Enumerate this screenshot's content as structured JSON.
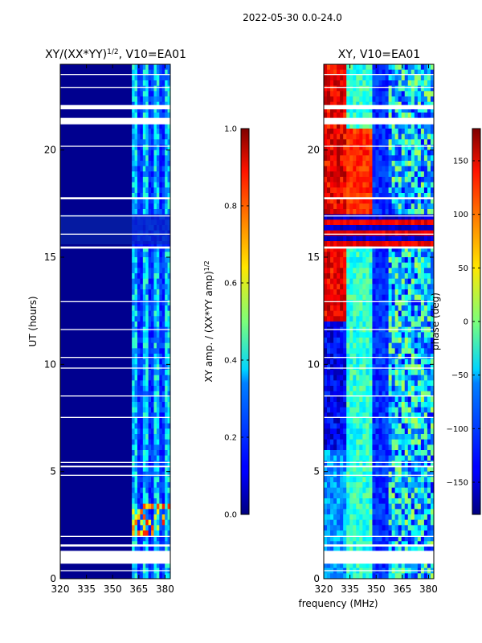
{
  "figure": {
    "suptitle": "2022-05-30 0.0-24.0",
    "xlabel": "frequency (MHz)"
  },
  "chart_data": [
    {
      "type": "heatmap",
      "title_main": "XY/(XX*YY)",
      "title_sup": "1/2",
      "title_rest": ", V10=EA01",
      "xlabel": "",
      "ylabel": "UT (hours)",
      "xlim": [
        320,
        383
      ],
      "ylim": [
        0,
        24
      ],
      "xticks": [
        320,
        335,
        350,
        365,
        380
      ],
      "yticks": [
        0,
        5,
        10,
        15,
        20
      ],
      "colormap": "jet",
      "colorbar": {
        "label_main": "XY amp. / (XX*YY amp)",
        "label_sup": "1/2",
        "range": [
          0.0,
          1.0
        ],
        "ticks": [
          "0.0",
          "0.2",
          "0.4",
          "0.6",
          "0.8",
          "1.0"
        ],
        "tick_values": [
          0.0,
          0.2,
          0.4,
          0.6,
          0.8,
          1.0
        ]
      },
      "mask_start_mhz": 330
    },
    {
      "type": "heatmap",
      "title_main": "XY, V10=EA01",
      "title_sup": "",
      "title_rest": "",
      "xlabel": "",
      "ylabel": "",
      "xlim": [
        320,
        383
      ],
      "ylim": [
        0,
        24
      ],
      "xticks": [
        320,
        335,
        350,
        365,
        380
      ],
      "yticks": [
        0,
        5,
        10,
        15,
        20
      ],
      "colormap": "jet",
      "colorbar": {
        "label_main": "phase (deg)",
        "label_sup": "",
        "range": [
          -180,
          180
        ],
        "ticks": [
          "−150",
          "−100",
          "−50",
          "0",
          "50",
          "100",
          "150"
        ],
        "tick_values": [
          -150,
          -100,
          -50,
          0,
          50,
          100,
          150
        ]
      },
      "mask_start_mhz": 320
    }
  ],
  "flagged_ut_ranges": [
    [
      0.35,
      0.4
    ],
    [
      0.7,
      1.3
    ],
    [
      1.5,
      1.6
    ],
    [
      1.95,
      2.0
    ],
    [
      4.8,
      4.85
    ],
    [
      5.2,
      5.27
    ],
    [
      5.4,
      5.45
    ],
    [
      7.5,
      7.55
    ],
    [
      8.5,
      8.55
    ],
    [
      9.8,
      9.85
    ],
    [
      10.3,
      10.35
    ],
    [
      11.6,
      11.65
    ],
    [
      12.9,
      12.95
    ],
    [
      15.4,
      15.5
    ],
    [
      16.05,
      16.1
    ],
    [
      16.9,
      16.95
    ],
    [
      17.7,
      17.8
    ],
    [
      20.15,
      20.2
    ],
    [
      21.2,
      21.5
    ],
    [
      21.9,
      22.1
    ],
    [
      22.9,
      22.95
    ],
    [
      23.5,
      23.55
    ]
  ]
}
